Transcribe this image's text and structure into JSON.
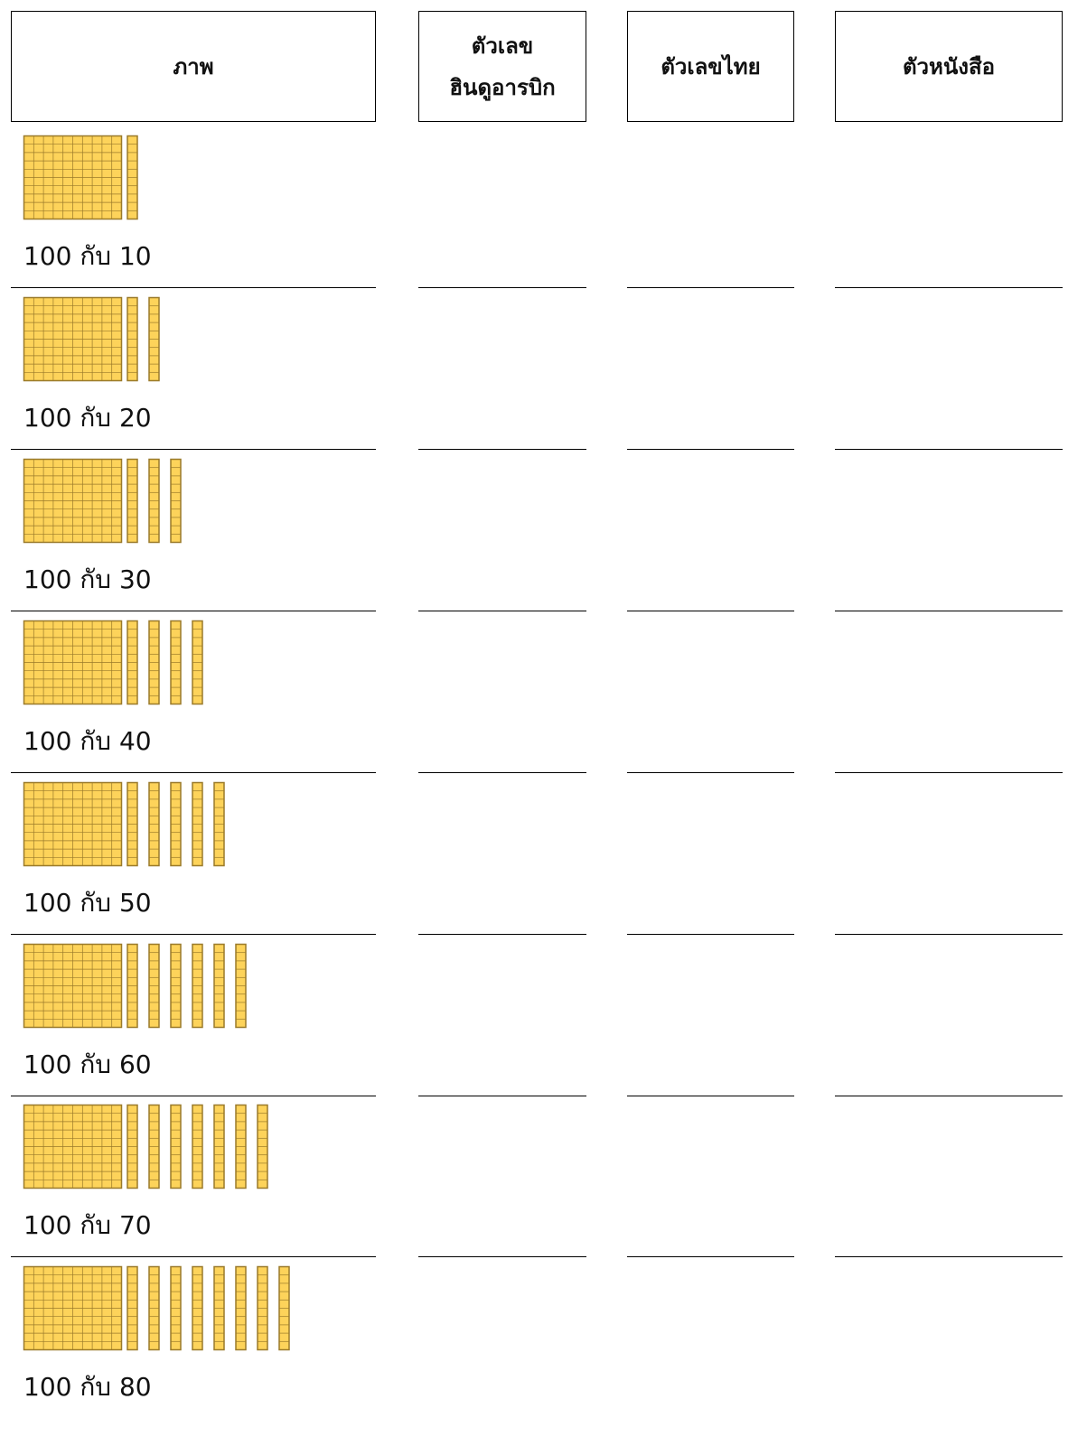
{
  "headers": [
    "ภาพ",
    "ตัวเลข\nฮินดูอารบิก",
    "ตัวเลขไทย",
    "ตัวหนังสือ"
  ],
  "rows": [
    "100 กับ 10",
    "100 กับ 20",
    "100 กับ 30",
    "100 กับ 40",
    "100 กับ 50",
    "100 กับ 60",
    "100 กับ 70",
    "100 กับ 80"
  ]
}
